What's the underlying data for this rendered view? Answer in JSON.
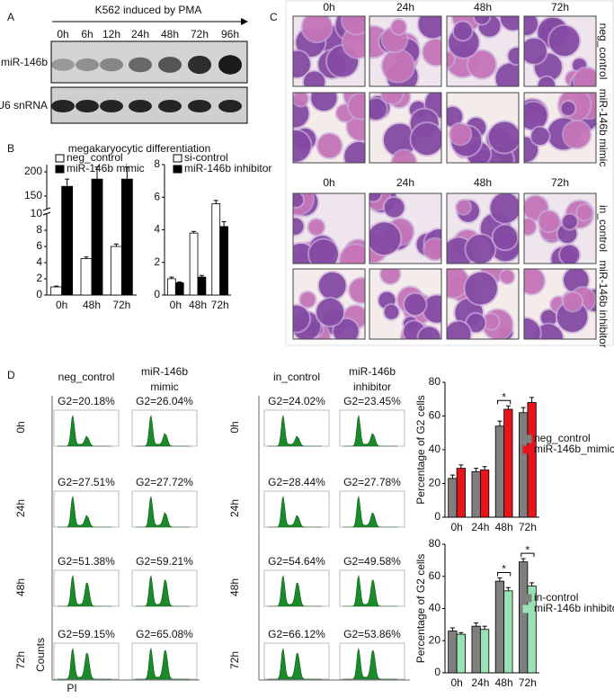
{
  "panel_a": {
    "label": "A",
    "title": "K562 induced by PMA",
    "lanes": [
      "0h",
      "6h",
      "12h",
      "24h",
      "48h",
      "72h",
      "96h"
    ],
    "rows": [
      "miR-146b",
      "U6 snRNA"
    ]
  },
  "panel_b": {
    "label": "B",
    "title": "megakaryocytic differentiation"
  },
  "panel_c": {
    "label": "C",
    "top": {
      "times": [
        "0h",
        "24h",
        "48h",
        "72h"
      ],
      "rows": [
        "neg_control",
        "miR-146b mimic"
      ]
    },
    "bottom": {
      "times": [
        "0h",
        "24h",
        "48h",
        "72h"
      ],
      "rows": [
        "in_control",
        "miR-146b inhibitor"
      ]
    }
  },
  "panel_d": {
    "label": "D",
    "y_label": "Counts",
    "x_label": "PI",
    "groups": [
      {
        "columns": [
          [
            "neg_control"
          ],
          [
            "miR-146b",
            "mimic"
          ]
        ],
        "times": [
          "0h",
          "24h",
          "48h",
          "72h"
        ],
        "g2": [
          [
            "G2=20.18%",
            "G2=26.04%"
          ],
          [
            "G2=27.51%",
            "G2=27.72%"
          ],
          [
            "G2=51.38%",
            "G2=59.21%"
          ],
          [
            "G2=59.15%",
            "G2=65.08%"
          ]
        ]
      },
      {
        "columns": [
          [
            "in_control"
          ],
          [
            "miR-146b",
            "inhibitor"
          ]
        ],
        "times": [
          "0h",
          "24h",
          "48h",
          "72h"
        ],
        "g2": [
          [
            "G2=24.02%",
            "G2=23.45%"
          ],
          [
            "G2=28.44%",
            "G2=27.78%"
          ],
          [
            "G2=54.64%",
            "G2=49.58%"
          ],
          [
            "G2=66.12%",
            "G2=53.86%"
          ]
        ]
      }
    ]
  },
  "chart_data": [
    {
      "type": "bar",
      "categories": [
        "0h",
        "48h",
        "72h"
      ],
      "series": [
        {
          "name": "neg_control",
          "color": "#ffffff",
          "values": [
            1,
            4.5,
            6
          ],
          "errors": [
            0.1,
            0.2,
            0.3
          ]
        },
        {
          "name": "miR-146b mimic",
          "color": "#000000",
          "values": [
            170,
            185,
            185
          ],
          "errors": [
            15,
            25,
            25
          ]
        }
      ],
      "ylim": [
        0,
        215
      ],
      "y_break": [
        10,
        122
      ],
      "yticks": [
        0,
        2,
        4,
        6,
        8,
        10,
        150,
        200
      ]
    },
    {
      "type": "bar",
      "categories": [
        "0h",
        "48h",
        "72h"
      ],
      "series": [
        {
          "name": "si-control",
          "color": "#ffffff",
          "values": [
            1.0,
            3.8,
            5.6
          ],
          "errors": [
            0.1,
            0.1,
            0.2
          ]
        },
        {
          "name": "miR-146b inhibitor",
          "color": "#000000",
          "values": [
            0.75,
            1.1,
            4.2
          ],
          "errors": [
            0.05,
            0.1,
            0.3
          ]
        }
      ],
      "ylim": [
        0,
        8
      ],
      "yticks": [
        0,
        2,
        4,
        6,
        8
      ]
    },
    {
      "type": "bar",
      "y_label": "Percentage of G2 cells",
      "categories": [
        "0h",
        "24h",
        "48h",
        "72h"
      ],
      "series": [
        {
          "name": "neg_control",
          "color": "#7f7f7f",
          "values": [
            23,
            27,
            54,
            62
          ],
          "errors": [
            2,
            2,
            3,
            3
          ]
        },
        {
          "name": "miR-146b_mimic",
          "color": "#e8141c",
          "values": [
            29,
            28,
            64,
            68
          ],
          "errors": [
            2,
            2,
            2,
            3
          ]
        }
      ],
      "annotations": [
        {
          "text": "*",
          "x": "48h"
        }
      ],
      "ylim": [
        0,
        80
      ],
      "yticks": [
        0,
        20,
        40,
        60,
        80
      ]
    },
    {
      "type": "bar",
      "y_label": "Percentage of G2 cells",
      "categories": [
        "0h",
        "24h",
        "48h",
        "72h"
      ],
      "series": [
        {
          "name": "in-control",
          "color": "#7f7f7f",
          "values": [
            26,
            29,
            57,
            69
          ],
          "errors": [
            2,
            2,
            2,
            2
          ]
        },
        {
          "name": "miR-146b inhibitor",
          "color": "#98e2b6",
          "values": [
            24,
            27,
            51,
            54
          ],
          "errors": [
            1,
            2,
            2,
            2
          ]
        }
      ],
      "annotations": [
        {
          "text": "*",
          "x": "48h"
        },
        {
          "text": "*",
          "x": "72h"
        }
      ],
      "ylim": [
        0,
        80
      ],
      "yticks": [
        0,
        20,
        40,
        60,
        80
      ]
    }
  ]
}
